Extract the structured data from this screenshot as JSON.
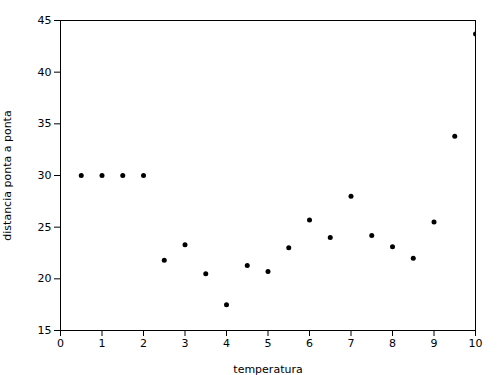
{
  "chart_data": {
    "type": "scatter",
    "x": [
      0.5,
      1.0,
      1.5,
      2.0,
      2.5,
      3.0,
      3.5,
      4.0,
      4.5,
      5.0,
      5.5,
      6.0,
      6.5,
      7.0,
      7.5,
      8.0,
      8.5,
      9.0,
      9.5,
      10.0
    ],
    "values": [
      30.0,
      30.0,
      30.0,
      30.0,
      21.8,
      23.3,
      20.5,
      17.5,
      21.3,
      20.7,
      23.0,
      25.7,
      24.0,
      28.0,
      24.2,
      23.1,
      22.0,
      25.5,
      33.8,
      43.7
    ],
    "xlabel": "temperatura",
    "ylabel": "distancia ponta a ponta",
    "xlim": [
      0,
      10
    ],
    "ylim": [
      15,
      45
    ],
    "xticks": [
      0,
      1,
      2,
      3,
      4,
      5,
      6,
      7,
      8,
      9,
      10
    ],
    "yticks": [
      15,
      20,
      25,
      30,
      35,
      40,
      45
    ],
    "marker": ".",
    "color": "black",
    "grid": false
  }
}
